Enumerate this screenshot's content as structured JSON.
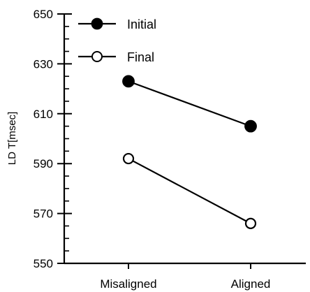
{
  "chart_data": {
    "type": "line",
    "categories": [
      "Misaligned",
      "Aligned"
    ],
    "series": [
      {
        "name": "Initial",
        "values": [
          623,
          605
        ],
        "marker": "filled-circle"
      },
      {
        "name": "Final",
        "values": [
          592,
          566
        ],
        "marker": "open-circle"
      }
    ],
    "ylabel": "LD T[msec]",
    "xlabel": "",
    "ylim": [
      550,
      650
    ],
    "yticks": [
      550,
      570,
      590,
      610,
      630,
      650
    ],
    "legend_position": "top-left",
    "grid": false,
    "colors": {
      "line": "#000000",
      "background": "#ffffff"
    }
  }
}
